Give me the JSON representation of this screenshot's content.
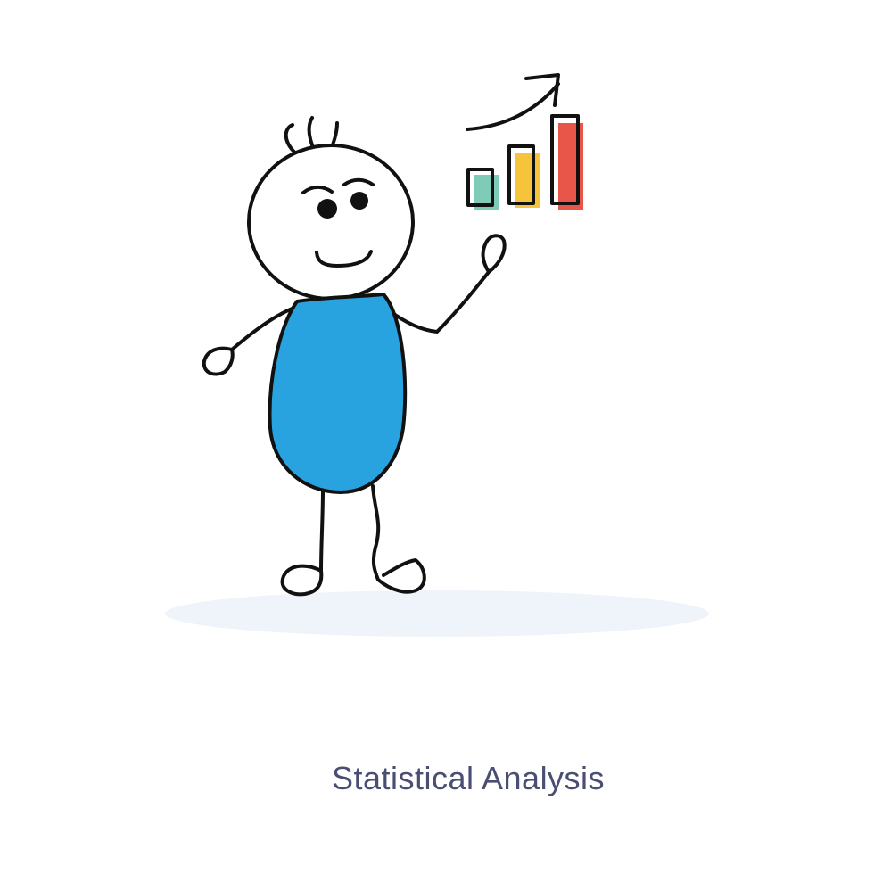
{
  "caption": {
    "text": "Statistical Analysis"
  },
  "illustration": {
    "subject": "stick-figure-presenting-bar-chart",
    "icons": [
      "stick-figure-icon",
      "bar-chart-icon",
      "trend-arrow-icon"
    ]
  },
  "colors": {
    "background": "#ffffff",
    "body_fill": "#29A3DF",
    "outline": "#111111",
    "bar_teal": "#7ECBB7",
    "bar_yellow": "#F5C43A",
    "bar_red": "#E8564A",
    "shadow": "#EFF3FA",
    "caption": "#4A4E72"
  }
}
